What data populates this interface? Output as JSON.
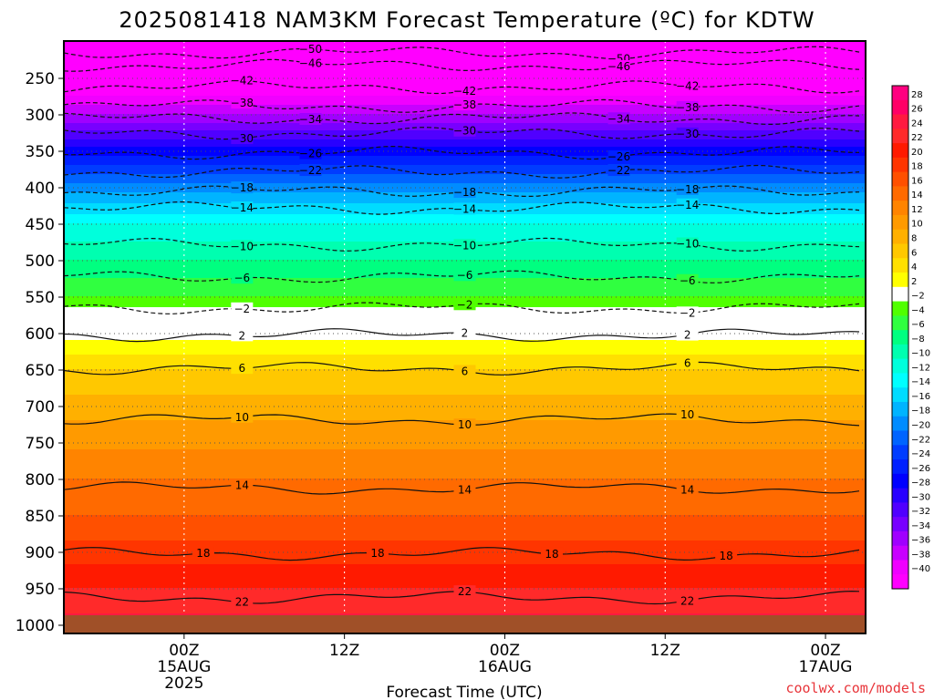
{
  "chart_data": {
    "type": "heatmap",
    "title": "2025081418 NAM3KM Forecast Temperature (ºC) for KDTW",
    "xlabel": "Forecast Time (UTC)",
    "ylabel": "",
    "y_axis": {
      "scale": "pressure",
      "units": "hPa",
      "range": [
        1000,
        200
      ],
      "ticks": [
        "250",
        "300",
        "350",
        "400",
        "450",
        "500",
        "550",
        "600",
        "650",
        "700",
        "750",
        "800",
        "850",
        "900",
        "950",
        "1000"
      ]
    },
    "x_axis": {
      "range_hours": [
        -9,
        51
      ],
      "ticks": [
        {
          "hour": 0,
          "lines": [
            "00Z",
            "15AUG",
            "2025"
          ]
        },
        {
          "hour": 12,
          "lines": [
            "12Z"
          ]
        },
        {
          "hour": 24,
          "lines": [
            "00Z",
            "16AUG"
          ]
        },
        {
          "hour": 36,
          "lines": [
            "12Z"
          ]
        },
        {
          "hour": 48,
          "lines": [
            "00Z",
            "17AUG"
          ]
        }
      ]
    },
    "grid": true,
    "colorbar": {
      "placement": "right",
      "labels": [
        "28",
        "26",
        "24",
        "22",
        "20",
        "18",
        "16",
        "14",
        "12",
        "10",
        "8",
        "6",
        "4",
        "2",
        "−2",
        "−4",
        "−6",
        "−8",
        "−10",
        "−12",
        "−14",
        "−16",
        "−18",
        "−20",
        "−22",
        "−24",
        "−26",
        "−28",
        "−30",
        "−32",
        "−34",
        "−36",
        "−38",
        "−40"
      ],
      "colors": [
        "#ff0080",
        "#ff0066",
        "#ff1a40",
        "#ff2a2a",
        "#ff1a00",
        "#ff3500",
        "#ff5000",
        "#ff6a00",
        "#ff8400",
        "#ff9a00",
        "#ffb000",
        "#ffc800",
        "#ffe000",
        "#ffff00",
        "#ffffff",
        "#50ff00",
        "#30ff40",
        "#00ff80",
        "#00ffb0",
        "#00ffdc",
        "#00ffff",
        "#00dcff",
        "#00b4ff",
        "#008cff",
        "#0064ff",
        "#003cff",
        "#0020ff",
        "#0000ff",
        "#2800ff",
        "#5000ff",
        "#7800ff",
        "#a000ff",
        "#c800ff",
        "#f000ff",
        "#ff00ff"
      ]
    },
    "profile": [
      {
        "p": 200,
        "t": -52
      },
      {
        "p": 250,
        "t": -44
      },
      {
        "p": 300,
        "t": -36
      },
      {
        "p": 350,
        "t": -27
      },
      {
        "p": 400,
        "t": -19
      },
      {
        "p": 450,
        "t": -12
      },
      {
        "p": 500,
        "t": -8
      },
      {
        "p": 550,
        "t": -4
      },
      {
        "p": 570,
        "t": -1
      },
      {
        "p": 590,
        "t": 0.5
      },
      {
        "p": 620,
        "t": 3
      },
      {
        "p": 650,
        "t": 6
      },
      {
        "p": 700,
        "t": 9
      },
      {
        "p": 750,
        "t": 11.5
      },
      {
        "p": 800,
        "t": 14
      },
      {
        "p": 850,
        "t": 16
      },
      {
        "p": 900,
        "t": 19
      },
      {
        "p": 950,
        "t": 22
      },
      {
        "p": 1000,
        "t": 25
      }
    ],
    "contours": [
      {
        "value": -50,
        "pressure": 215,
        "labels": [
          "−50",
          "−50"
        ]
      },
      {
        "value": -46,
        "pressure": 232,
        "labels": [
          "−46",
          "−46"
        ]
      },
      {
        "value": -42,
        "pressure": 262,
        "labels": [
          "−42",
          "−42",
          "−42"
        ]
      },
      {
        "value": -38,
        "pressure": 288,
        "labels": [
          "−38",
          "−38",
          "−38"
        ]
      },
      {
        "value": -34,
        "pressure": 305,
        "labels": [
          "−34",
          "−34"
        ]
      },
      {
        "value": -30,
        "pressure": 325,
        "labels": [
          "−30",
          "−30",
          "−30"
        ]
      },
      {
        "value": -26,
        "pressure": 352,
        "labels": [
          "−26",
          "−26"
        ]
      },
      {
        "value": -22,
        "pressure": 378,
        "labels": [
          "−22",
          "−22"
        ]
      },
      {
        "value": -18,
        "pressure": 405,
        "labels": [
          "−18",
          "−18",
          "−18"
        ]
      },
      {
        "value": -14,
        "pressure": 428,
        "labels": [
          "−14",
          "−14",
          "−14"
        ]
      },
      {
        "value": -10,
        "pressure": 478,
        "labels": [
          "−10",
          "−10",
          "−10"
        ]
      },
      {
        "value": -6,
        "pressure": 522,
        "labels": [
          "−6",
          "−6",
          "−6"
        ]
      },
      {
        "value": -2,
        "pressure": 565,
        "labels": [
          "−2",
          "−2",
          "−2"
        ]
      },
      {
        "value": 2,
        "pressure": 602,
        "labels": [
          "2",
          "2",
          "2"
        ]
      },
      {
        "value": 6,
        "pressure": 648,
        "labels": [
          "6",
          "6",
          "6"
        ]
      },
      {
        "value": 10,
        "pressure": 718,
        "labels": [
          "10",
          "10",
          "10"
        ]
      },
      {
        "value": 14,
        "pressure": 812,
        "labels": [
          "14",
          "14",
          "14"
        ]
      },
      {
        "value": 18,
        "pressure": 902,
        "labels": [
          "18",
          "18",
          "18",
          "18"
        ]
      },
      {
        "value": 22,
        "pressure": 962,
        "labels": [
          "22",
          "22",
          "22"
        ]
      }
    ]
  },
  "credit": "coolwx.com/models"
}
